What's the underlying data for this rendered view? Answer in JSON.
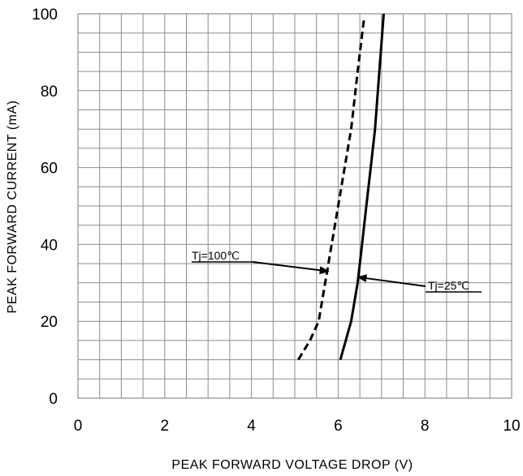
{
  "chart_data": {
    "type": "line",
    "title": "",
    "xlabel": "PEAK FORWARD VOLTAGE DROP (V)",
    "ylabel": "PEAK FORWARD CURRENT (mA)",
    "xlim": [
      0,
      10
    ],
    "ylim": [
      0,
      100
    ],
    "x_ticks": [
      "0",
      "2",
      "4",
      "6",
      "8",
      "10"
    ],
    "y_ticks": [
      "0",
      "20",
      "40",
      "60",
      "80",
      "100"
    ],
    "x_tick_values": [
      0,
      2,
      4,
      6,
      8,
      10
    ],
    "y_tick_values": [
      0,
      20,
      40,
      60,
      80,
      100
    ],
    "grid": true,
    "grid_minor_x_step": 0.5,
    "grid_minor_y_step": 5,
    "series": [
      {
        "style": "dashed",
        "color": "#000000",
        "x": [
          5.08,
          5.35,
          5.55,
          5.7,
          5.85,
          6.0,
          6.15,
          6.3,
          6.45,
          6.6
        ],
        "y": [
          10,
          15,
          20,
          30,
          40,
          50,
          60,
          70,
          85,
          99
        ]
      },
      {
        "style": "solid",
        "color": "#000000",
        "x": [
          6.05,
          6.3,
          6.45,
          6.55,
          6.65,
          6.75,
          6.85,
          6.95,
          7.05
        ],
        "y": [
          10,
          20,
          30,
          40,
          50,
          60,
          70,
          85,
          100
        ]
      }
    ],
    "annotations": [
      {
        "text": "Tj=100℃",
        "target_x": 5.78,
        "target_y": 33
      },
      {
        "text": "Tj=25℃",
        "target_x": 6.45,
        "target_y": 31.5
      }
    ]
  }
}
